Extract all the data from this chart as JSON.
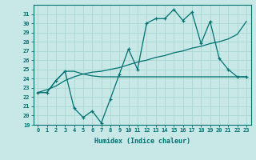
{
  "xlabel": "Humidex (Indice chaleur)",
  "background_color": "#c8e8e8",
  "grid_color": "#a8d8d0",
  "line_color": "#007070",
  "x": [
    0,
    1,
    2,
    3,
    4,
    5,
    6,
    7,
    8,
    9,
    10,
    11,
    12,
    13,
    14,
    15,
    16,
    17,
    18,
    19,
    20,
    21,
    22,
    23
  ],
  "line1": [
    22.5,
    22.5,
    23.8,
    24.8,
    20.8,
    19.8,
    20.5,
    19.2,
    21.8,
    24.5,
    27.2,
    25.0,
    30.0,
    30.5,
    30.5,
    31.5,
    30.3,
    31.2,
    27.8,
    30.2,
    26.2,
    25.0,
    24.2,
    24.2
  ],
  "line2": [
    22.5,
    22.5,
    23.8,
    24.8,
    24.8,
    24.5,
    24.3,
    24.2,
    24.2,
    24.2,
    24.2,
    24.2,
    24.2,
    24.2,
    24.2,
    24.2,
    24.2,
    24.2,
    24.2,
    24.2,
    24.2,
    24.2,
    24.2,
    24.2
  ],
  "line3": [
    22.5,
    22.8,
    23.2,
    23.8,
    24.2,
    24.5,
    24.7,
    24.8,
    25.0,
    25.2,
    25.5,
    25.8,
    26.0,
    26.3,
    26.5,
    26.8,
    27.0,
    27.3,
    27.5,
    27.8,
    28.0,
    28.3,
    28.8,
    30.2
  ],
  "ylim": [
    19,
    32
  ],
  "xlim": [
    -0.5,
    23.5
  ],
  "yticks": [
    19,
    20,
    21,
    22,
    23,
    24,
    25,
    26,
    27,
    28,
    29,
    30,
    31
  ],
  "xticks": [
    0,
    1,
    2,
    3,
    4,
    5,
    6,
    7,
    8,
    9,
    10,
    11,
    12,
    13,
    14,
    15,
    16,
    17,
    18,
    19,
    20,
    21,
    22,
    23
  ],
  "xlabel_fontsize": 6,
  "tick_fontsize": 5
}
